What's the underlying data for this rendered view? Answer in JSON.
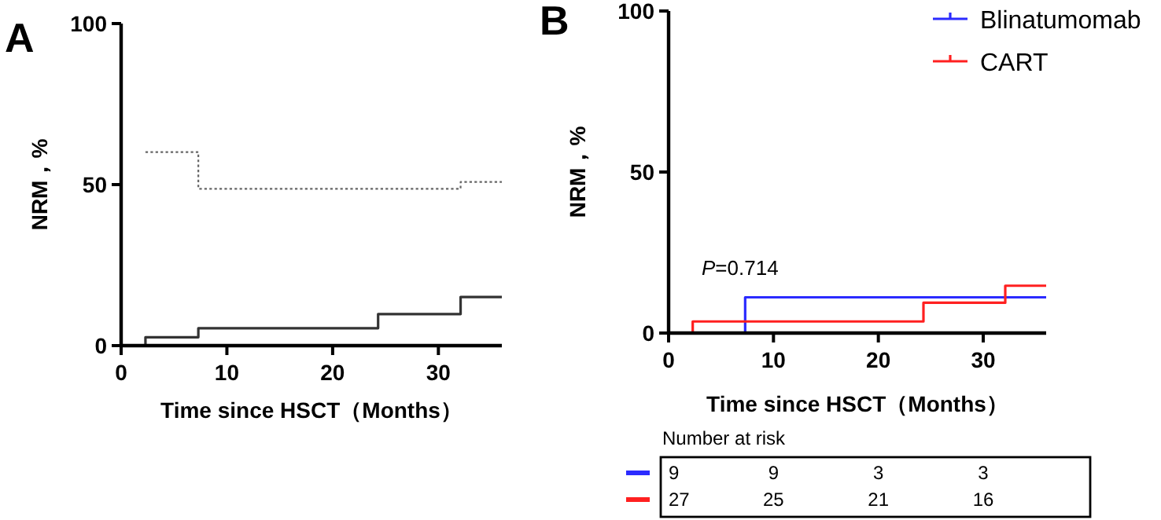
{
  "chart_data": [
    {
      "type": "step",
      "title": "A",
      "xlabel": "Time since HSCT（Months）",
      "ylabel": "NRM，%",
      "xlim": [
        0,
        36
      ],
      "ylim": [
        0,
        100
      ],
      "xticks": [
        0,
        10,
        20,
        30
      ],
      "yticks": [
        0,
        50,
        100
      ],
      "grid": false,
      "legend": false,
      "series": [
        {
          "color": "#333333",
          "x": [
            0,
            2.3,
            7.3,
            24.3,
            32.1,
            36
          ],
          "values": [
            0,
            2.6,
            5.4,
            9.8,
            15.1,
            15.1
          ]
        },
        {
          "color": "#666666",
          "line_style": "dotted",
          "x": [
            2.3,
            7.3,
            32.1,
            36
          ],
          "values": [
            60.1,
            48.7,
            50.8,
            50.8
          ]
        }
      ]
    },
    {
      "type": "step",
      "title": "B",
      "xlabel": "Time since HSCT（Months）",
      "ylabel": "NRM，%",
      "xlim": [
        0,
        36
      ],
      "ylim": [
        0,
        100
      ],
      "xticks": [
        0,
        10,
        20,
        30
      ],
      "yticks": [
        0,
        50,
        100
      ],
      "grid": false,
      "legend": "top right",
      "annotations": [
        "*P*=0.714",
        "Number at risk",
        "9",
        "9",
        "3",
        "3",
        "27",
        "25",
        "21",
        "16"
      ],
      "series": [
        {
          "name": "Blinatumomab",
          "color": "#2b2bff",
          "x": [
            0,
            7.3,
            36
          ],
          "values": [
            0,
            11.1,
            11.1
          ]
        },
        {
          "name": "CART",
          "color": "#ff2020",
          "x": [
            0,
            2.3,
            24.3,
            32.1,
            36
          ],
          "values": [
            0,
            3.6,
            9.4,
            14.7,
            14.7
          ]
        }
      ]
    }
  ]
}
